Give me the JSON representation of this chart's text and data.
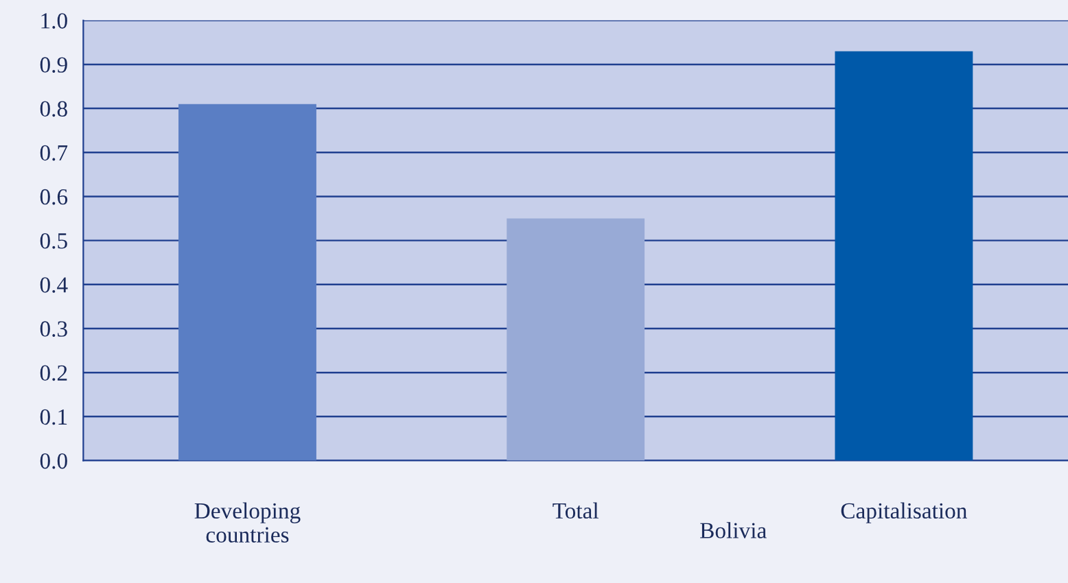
{
  "chart_data": {
    "type": "bar",
    "categories": [
      "Developing\ncountries",
      "Total",
      "Capitalisation"
    ],
    "values": [
      0.81,
      0.55,
      0.93
    ],
    "colors": [
      "#5a7ec4",
      "#98aad6",
      "#0059a9"
    ],
    "xlabel": "Bolivia",
    "ylim": [
      0.0,
      1.0
    ],
    "yticks": [
      {
        "value": 0,
        "label": "0.0"
      },
      0.1,
      0.2,
      0.3,
      0.4,
      0.5,
      0.6,
      0.7,
      0.8,
      0.9,
      {
        "value": 1,
        "label": "1.0"
      }
    ],
    "grid": "y",
    "legend": false
  }
}
